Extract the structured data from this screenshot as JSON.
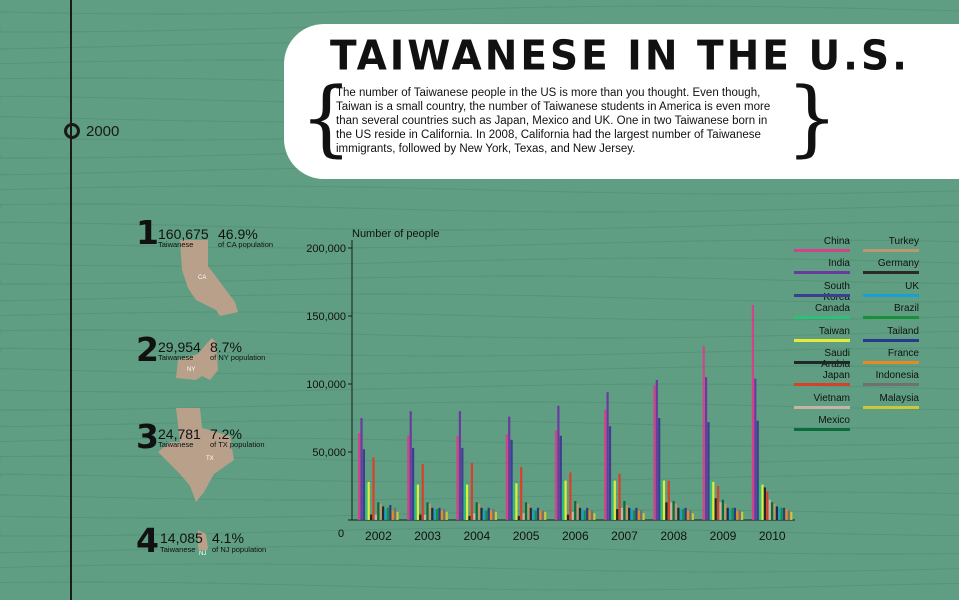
{
  "header": {
    "title": "TAIWANESE IN THE U.S.",
    "description": "The number of Taiwanese people in the US is more than you thought. Even though, Taiwan is a small country, the number of Taiwanese students in America is even more than several countries such as Japan, Mexico and UK. One in two Taiwanese born in the US reside in California. In 2008, California had the largest number of Taiwanese immigrants, followed by New York, Texas, and New Jersey.",
    "brace_open": "{",
    "brace_close": "}"
  },
  "timeline": {
    "year": "2000"
  },
  "states": [
    {
      "rank": "1",
      "population": "160,675",
      "pop_label": "Taiwanese",
      "percent": "46.9%",
      "pct_label": "of CA population",
      "abbr": "CA"
    },
    {
      "rank": "2",
      "population": "29,954",
      "pop_label": "Taiwanese",
      "percent": "8.7%",
      "pct_label": "of NY population",
      "abbr": "NY"
    },
    {
      "rank": "3",
      "population": "24,781",
      "pop_label": "Taiwanese",
      "percent": "7.2%",
      "pct_label": "of TX population",
      "abbr": "TX"
    },
    {
      "rank": "4",
      "population": "14,085",
      "pop_label": "Taiwanese",
      "percent": "4.1%",
      "pct_label": "of NJ population",
      "abbr": "NJ"
    }
  ],
  "colors": {
    "background": "#5f9e82",
    "map": "#b8a08a",
    "card": "#ffffff"
  },
  "chart_data": {
    "type": "bar",
    "ylabel": "Number of people",
    "ylim": [
      0,
      200000
    ],
    "yticks": [
      "200,000",
      "150,000",
      "100,000",
      "50,000",
      "0"
    ],
    "yticks_values": [
      200000,
      150000,
      100000,
      50000,
      0
    ],
    "categories": [
      "2002",
      "2003",
      "2004",
      "2005",
      "2006",
      "2007",
      "2008",
      "2009",
      "2010"
    ],
    "grid": false,
    "legend_position": "right",
    "series": [
      {
        "name": "China",
        "color": "#d14489",
        "values": [
          64000,
          62000,
          62000,
          63000,
          66000,
          81000,
          99000,
          128000,
          158000
        ]
      },
      {
        "name": "India",
        "color": "#6b3aa0",
        "values": [
          75000,
          80000,
          80000,
          76000,
          84000,
          94000,
          103000,
          105000,
          104000
        ]
      },
      {
        "name": "South Korea",
        "color": "#3a3f8f",
        "values": [
          52000,
          53000,
          53000,
          59000,
          62000,
          69000,
          75000,
          72000,
          73000
        ]
      },
      {
        "name": "Canada",
        "color": "#2fbf78",
        "values": [
          27000,
          26000,
          28000,
          28000,
          28000,
          29000,
          29000,
          29000,
          28000
        ]
      },
      {
        "name": "Taiwan",
        "color": "#e6e83a",
        "values": [
          28000,
          26000,
          26000,
          27000,
          29000,
          29000,
          29000,
          28000,
          26000
        ]
      },
      {
        "name": "Saudi Arabia",
        "color": "#1e2a2a",
        "values": [
          4000,
          4000,
          3000,
          3000,
          4000,
          8000,
          13000,
          16000,
          24000
        ]
      },
      {
        "name": "Japan",
        "color": "#d8402a",
        "values": [
          46000,
          41000,
          42000,
          39000,
          35000,
          34000,
          29000,
          25000,
          21000
        ]
      },
      {
        "name": "Vietnam",
        "color": "#c4b4a4",
        "values": [
          4000,
          4000,
          5000,
          5000,
          6000,
          9000,
          13000,
          13000,
          15000
        ]
      },
      {
        "name": "Mexico",
        "color": "#0c6b3a",
        "values": [
          13000,
          13000,
          13000,
          13000,
          14000,
          14000,
          14000,
          15000,
          13000
        ]
      },
      {
        "name": "Turkey",
        "color": "#b89870",
        "values": [
          12000,
          12000,
          12000,
          12000,
          12000,
          11000,
          12000,
          12000,
          12000
        ]
      },
      {
        "name": "Germany",
        "color": "#2a2a2a",
        "values": [
          10000,
          9000,
          9000,
          9000,
          9000,
          9000,
          9000,
          9000,
          10000
        ]
      },
      {
        "name": "UK",
        "color": "#1aa0d0",
        "values": [
          8000,
          8000,
          8000,
          8000,
          8000,
          8000,
          8000,
          8000,
          9000
        ]
      },
      {
        "name": "Brazil",
        "color": "#1a8f3a",
        "values": [
          9000,
          8000,
          7000,
          7000,
          7000,
          7000,
          8000,
          9000,
          9000
        ]
      },
      {
        "name": "Tailand",
        "color": "#2a3a8a",
        "values": [
          11000,
          9000,
          9000,
          9000,
          9000,
          9000,
          9000,
          9000,
          9000
        ]
      },
      {
        "name": "France",
        "color": "#e88a20",
        "values": [
          7000,
          7000,
          7000,
          7000,
          7000,
          7000,
          7000,
          7000,
          8000
        ]
      },
      {
        "name": "Indonesia",
        "color": "#707070",
        "values": [
          9000,
          8000,
          8000,
          7000,
          7000,
          7000,
          7000,
          7000,
          7000
        ]
      },
      {
        "name": "Malaysia",
        "color": "#c8c838",
        "values": [
          6000,
          6000,
          6000,
          6000,
          5000,
          5000,
          5000,
          6000,
          6000
        ]
      }
    ]
  }
}
